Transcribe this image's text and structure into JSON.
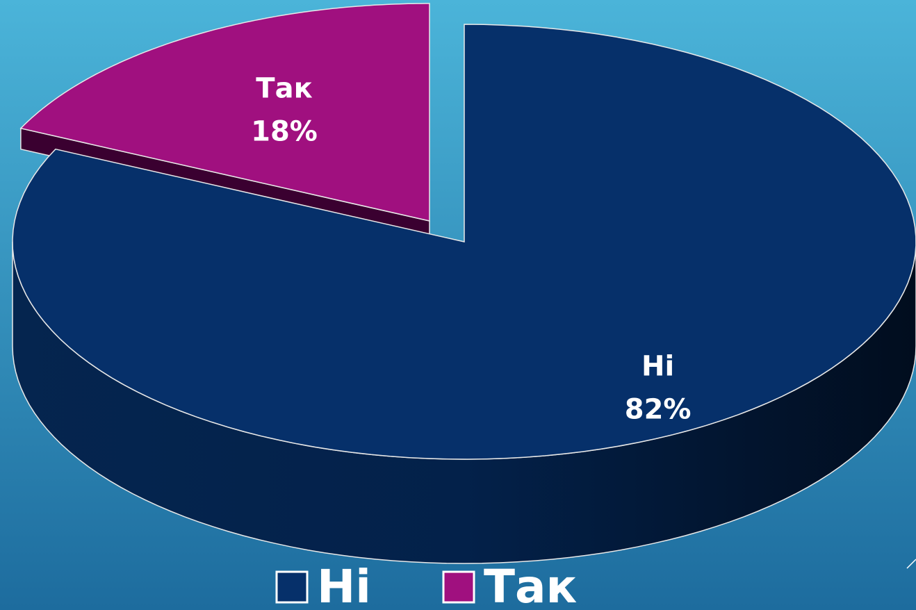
{
  "chart_data": {
    "type": "pie",
    "categories": [
      "Ні",
      "Так"
    ],
    "values": [
      82,
      18
    ],
    "value_labels": [
      "82%",
      "18%"
    ],
    "colors": [
      "#06306a",
      "#a0107f"
    ],
    "legend": "bottom"
  }
}
